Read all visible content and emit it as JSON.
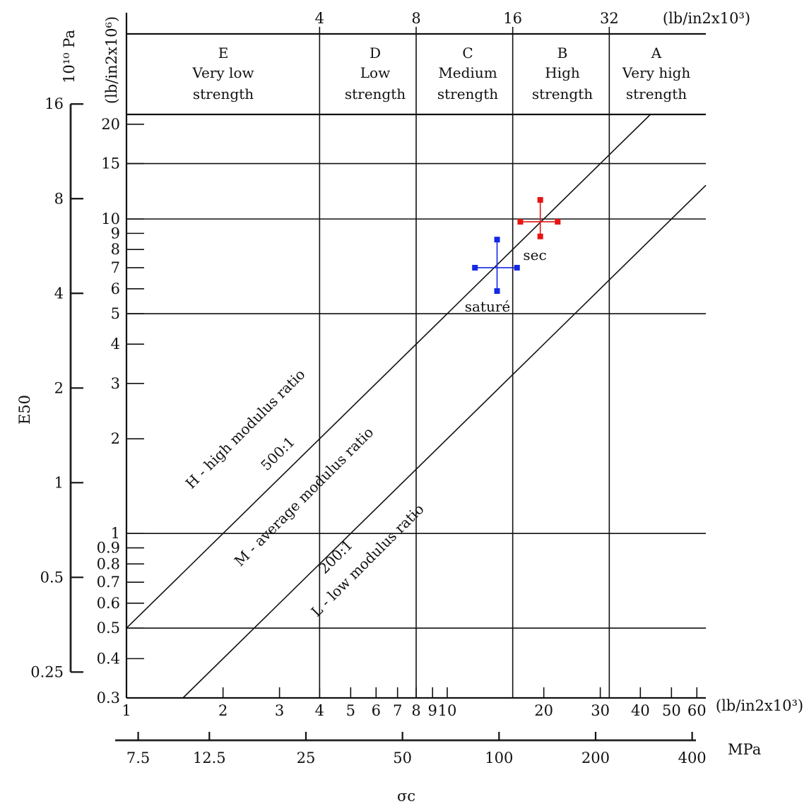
{
  "chart_data": {
    "type": "scatter",
    "title": "",
    "x_axis_label": "σc",
    "y_axis_label": "E50",
    "x_axis_bottom": {
      "unit": "(lb/in2x10³)",
      "ticks": [
        1,
        2,
        3,
        4,
        5,
        6,
        7,
        8,
        9,
        10,
        20,
        30,
        40,
        50,
        60
      ],
      "range": [
        1,
        64
      ]
    },
    "x_axis_mpa": {
      "unit": "MPa",
      "ticks": [
        7.5,
        12.5,
        25,
        50,
        100,
        200,
        400
      ]
    },
    "x_axis_top": {
      "unit": "(lb/in2x10³)",
      "ticks": [
        4,
        8,
        16,
        32
      ]
    },
    "y_axis_inner": {
      "unit": "(lb/in2x10⁶)",
      "ticks": [
        0.3,
        0.4,
        0.5,
        0.6,
        0.7,
        0.8,
        0.9,
        1,
        2,
        3,
        4,
        5,
        6,
        7,
        8,
        9,
        10,
        15,
        20
      ],
      "range": [
        0.3,
        21.5
      ]
    },
    "y_axis_outer": {
      "unit": "10¹⁰ Pa",
      "ticks": [
        0.25,
        0.5,
        1,
        2,
        4,
        8,
        16
      ]
    },
    "strength_classes": [
      {
        "letter": "E",
        "line1": "Very low",
        "line2": "strength"
      },
      {
        "letter": "D",
        "line1": "Low",
        "line2": "strength"
      },
      {
        "letter": "C",
        "line1": "Medium",
        "line2": "strength"
      },
      {
        "letter": "B",
        "line1": "High",
        "line2": "strength"
      },
      {
        "letter": "A",
        "line1": "Very high",
        "line2": "strength"
      }
    ],
    "class_boundaries_x": [
      4,
      8,
      16,
      32
    ],
    "modulus_ratio_lines": [
      {
        "ratio": 500,
        "label": "H - high modulus ratio",
        "ratio_label": "500:1"
      },
      {
        "ratio": 200,
        "label": "L - low modulus ratio",
        "ratio_label": "200:1"
      },
      {
        "label": "M - average modulus ratio"
      }
    ],
    "horizontal_grid_y": [
      0.5,
      1,
      5,
      10,
      15,
      21.5
    ],
    "points": [
      {
        "label": "saturé",
        "color": "#1428e6",
        "x": 14.3,
        "y": 7,
        "x_min": 12.2,
        "x_max": 16.5,
        "y_min": 5.9,
        "y_max": 8.6
      },
      {
        "label": "sec",
        "color": "#e61414",
        "x": 19.5,
        "y": 9.8,
        "x_min": 16.9,
        "x_max": 22.1,
        "y_min": 8.8,
        "y_max": 11.5
      }
    ]
  }
}
